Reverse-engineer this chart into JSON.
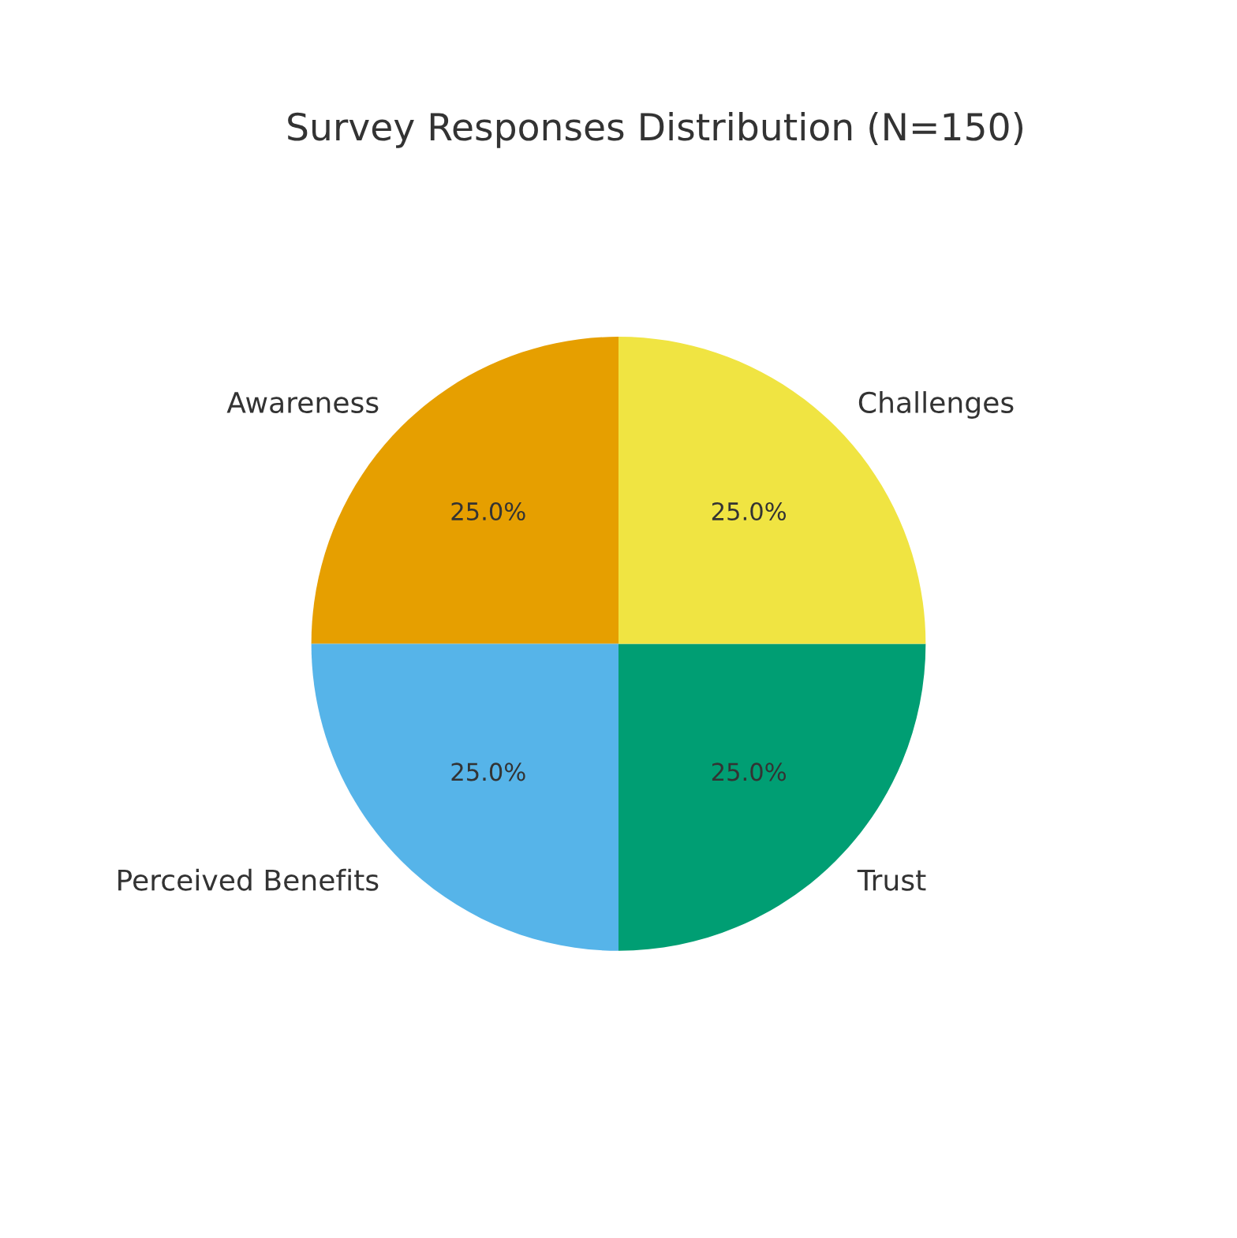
{
  "chart_data": {
    "type": "pie",
    "title": "Survey Responses Distribution (N=150)",
    "categories": [
      "Awareness",
      "Perceived Benefits",
      "Trust",
      "Challenges"
    ],
    "values": [
      25,
      25,
      25,
      25
    ],
    "colors": [
      "#e69f00",
      "#56b4e9",
      "#009e73",
      "#f0e442"
    ],
    "value_labels": [
      "25.0%",
      "25.0%",
      "25.0%",
      "25.0%"
    ]
  }
}
